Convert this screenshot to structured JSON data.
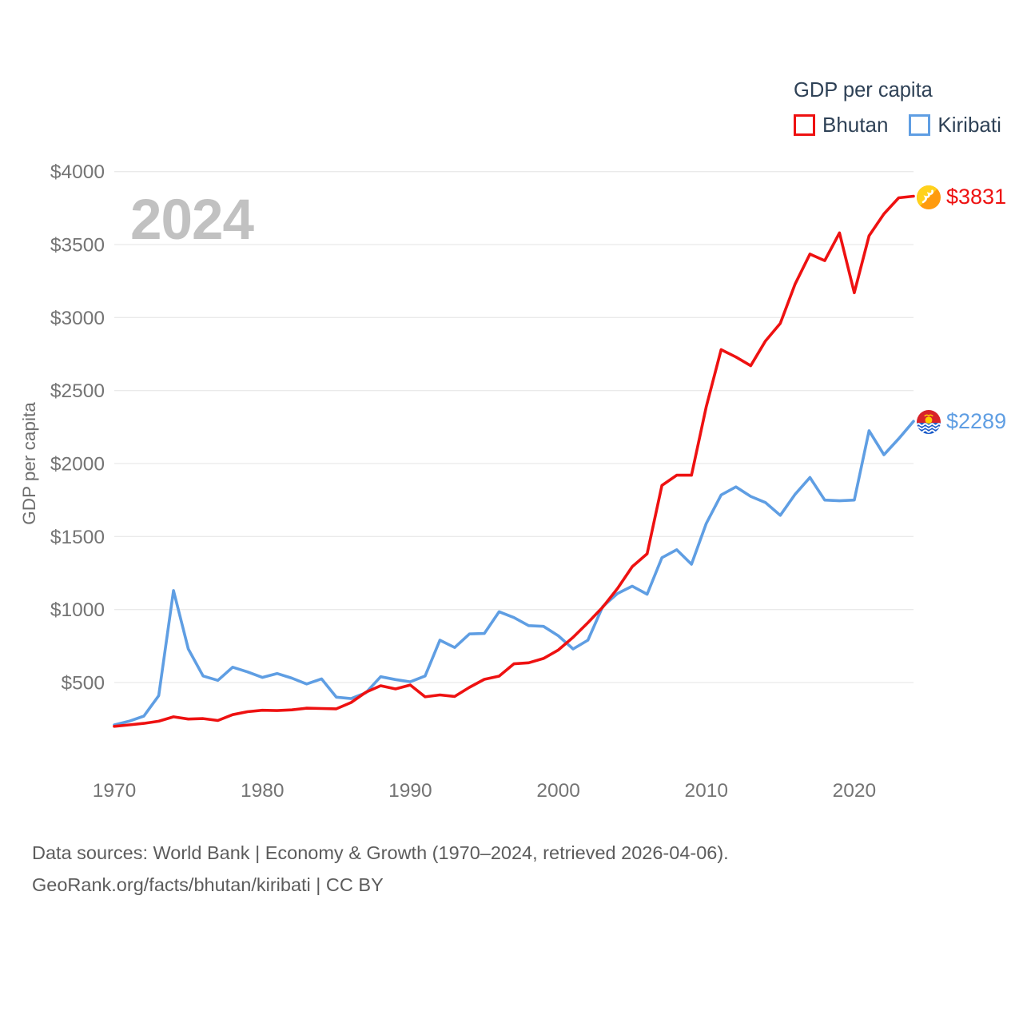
{
  "legend": {
    "title": "GDP per capita",
    "series": [
      {
        "label": "Bhutan",
        "color": "#ee1111"
      },
      {
        "label": "Kiribati",
        "color": "#5f9ee3"
      }
    ]
  },
  "watermark": "2024",
  "chart_data": {
    "type": "line",
    "title": "GDP per capita",
    "xlabel": "",
    "ylabel": "GDP per capita",
    "grid": "horizontal",
    "legend_position": "top-right",
    "ylim": [
      0,
      4000
    ],
    "y_ticks": [
      500,
      1000,
      1500,
      2000,
      2500,
      3000,
      3500,
      4000
    ],
    "y_tick_labels": [
      "$500",
      "$1000",
      "$1500",
      "$2000",
      "$2500",
      "$3000",
      "$3500",
      "$4000"
    ],
    "x_ticks": [
      1970,
      1980,
      1990,
      2000,
      2010,
      2020
    ],
    "x": [
      1970,
      1971,
      1972,
      1973,
      1974,
      1975,
      1976,
      1977,
      1978,
      1979,
      1980,
      1981,
      1982,
      1983,
      1984,
      1985,
      1986,
      1987,
      1988,
      1989,
      1990,
      1991,
      1992,
      1993,
      1994,
      1995,
      1996,
      1997,
      1998,
      1999,
      2000,
      2001,
      2002,
      2003,
      2004,
      2005,
      2006,
      2007,
      2008,
      2009,
      2010,
      2011,
      2012,
      2013,
      2014,
      2015,
      2016,
      2017,
      2018,
      2019,
      2020,
      2021,
      2022,
      2023,
      2024
    ],
    "series": [
      {
        "name": "Bhutan",
        "color": "#ee1111",
        "end_label": "$3831",
        "values": [
          200,
          210,
          220,
          235,
          265,
          250,
          253,
          240,
          280,
          300,
          310,
          308,
          313,
          324,
          322,
          320,
          363,
          434,
          478,
          456,
          483,
          402,
          415,
          405,
          467,
          522,
          544,
          628,
          635,
          665,
          723,
          810,
          910,
          1016,
          1144,
          1294,
          1382,
          1850,
          1920,
          1920,
          2390,
          2780,
          2730,
          2670,
          2840,
          2960,
          3230,
          3435,
          3390,
          3580,
          3170,
          3560,
          3710,
          3820,
          3831
        ]
      },
      {
        "name": "Kiribati",
        "color": "#5f9ee3",
        "end_label": "$2289",
        "values": [
          210,
          235,
          270,
          410,
          1130,
          730,
          545,
          515,
          605,
          573,
          535,
          562,
          530,
          490,
          525,
          400,
          390,
          430,
          540,
          520,
          505,
          545,
          790,
          740,
          833,
          836,
          985,
          945,
          890,
          885,
          820,
          730,
          790,
          1020,
          1110,
          1160,
          1105,
          1355,
          1410,
          1310,
          1590,
          1785,
          1840,
          1775,
          1733,
          1645,
          1790,
          1905,
          1750,
          1745,
          1750,
          2225,
          2060,
          2170,
          2289
        ]
      }
    ]
  },
  "footer": {
    "line1": "Data sources: World Bank | Economy & Growth (1970–2024, retrieved 2026-04-06).",
    "line2": "GeoRank.org/facts/bhutan/kiribati | CC BY"
  }
}
